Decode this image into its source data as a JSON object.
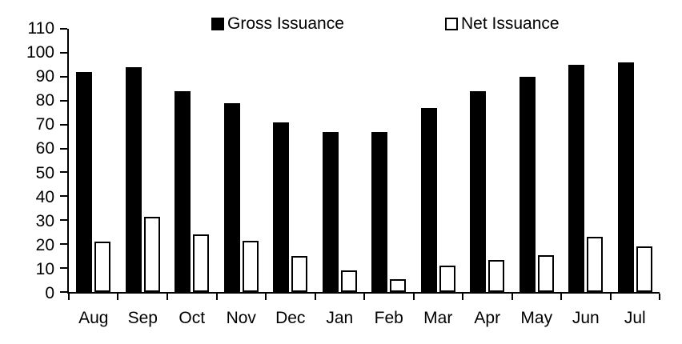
{
  "chart_data": {
    "type": "bar",
    "title": "",
    "xlabel": "",
    "ylabel": "",
    "categories": [
      "Aug",
      "Sep",
      "Oct",
      "Nov",
      "Dec",
      "Jan",
      "Feb",
      "Mar",
      "Apr",
      "May",
      "Jun",
      "Jul"
    ],
    "series": [
      {
        "name": "Gross Issuance",
        "fill": "#000000",
        "outline": "#000000",
        "values": [
          92,
          94,
          84,
          79,
          71,
          67,
          67,
          77,
          84,
          90,
          95,
          96
        ]
      },
      {
        "name": "Net Issuance",
        "fill": "#ffffff",
        "outline": "#000000",
        "values": [
          21,
          31.5,
          24,
          21.5,
          15,
          9,
          5.5,
          11,
          13.5,
          15.5,
          23,
          19
        ]
      }
    ],
    "ylim": [
      0,
      110
    ],
    "yticks": [
      0,
      10,
      20,
      30,
      40,
      50,
      60,
      70,
      80,
      90,
      100,
      110
    ],
    "grid": false,
    "legend_position": "top",
    "axis_color": "#000000",
    "background": "#ffffff"
  }
}
